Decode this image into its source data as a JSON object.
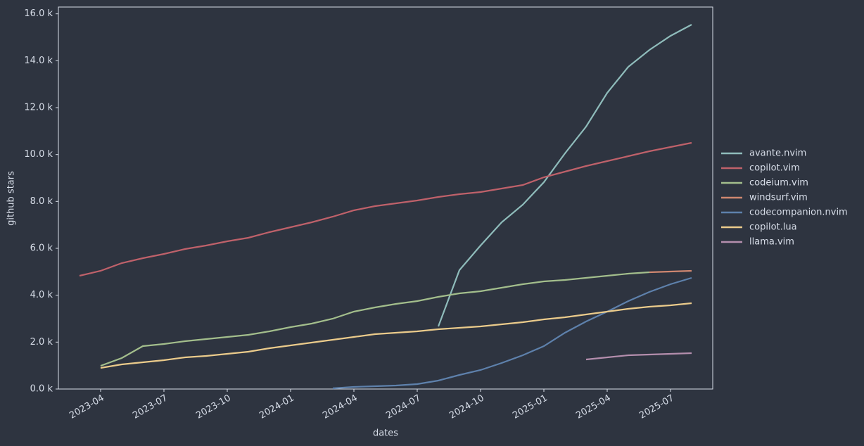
{
  "chart_data": {
    "type": "line",
    "xlabel": "dates",
    "ylabel": "github stars",
    "x": [
      "2023-03",
      "2023-04",
      "2023-05",
      "2023-06",
      "2023-07",
      "2023-08",
      "2023-09",
      "2023-10",
      "2023-11",
      "2023-12",
      "2024-01",
      "2024-02",
      "2024-03",
      "2024-04",
      "2024-05",
      "2024-06",
      "2024-07",
      "2024-08",
      "2024-09",
      "2024-10",
      "2024-11",
      "2024-12",
      "2025-01",
      "2025-02",
      "2025-03",
      "2025-04",
      "2025-05",
      "2025-06",
      "2025-07",
      "2025-08"
    ],
    "xlim": [
      "2023-02",
      "2025-09"
    ],
    "xticks": [
      "2023-04",
      "2023-07",
      "2023-10",
      "2024-01",
      "2024-04",
      "2024-07",
      "2024-10",
      "2025-01",
      "2025-04",
      "2025-07"
    ],
    "ylim": [
      0,
      16290
    ],
    "yticks": [
      {
        "value": 0,
        "label": "0.0 k"
      },
      {
        "value": 2000,
        "label": "2.0 k"
      },
      {
        "value": 4000,
        "label": "4.0 k"
      },
      {
        "value": 6000,
        "label": "6.0 k"
      },
      {
        "value": 8000,
        "label": "8.0 k"
      },
      {
        "value": 10000,
        "label": "10.0 k"
      },
      {
        "value": 12000,
        "label": "12.0 k"
      },
      {
        "value": 14000,
        "label": "14.0 k"
      },
      {
        "value": 16000,
        "label": "16.0 k"
      }
    ],
    "grid": false,
    "legend": "right",
    "series": [
      {
        "name": "avante.nvim",
        "color": "#8fbcbb",
        "values": [
          null,
          null,
          null,
          null,
          null,
          null,
          null,
          null,
          null,
          null,
          null,
          null,
          null,
          null,
          null,
          null,
          null,
          2670,
          5070,
          6120,
          7110,
          7860,
          8820,
          10050,
          11190,
          12630,
          13740,
          14460,
          15060,
          15540
        ]
      },
      {
        "name": "copilot.vim",
        "color": "#bf616a",
        "values": [
          4830,
          5040,
          5370,
          5580,
          5760,
          5970,
          6120,
          6300,
          6450,
          6690,
          6900,
          7110,
          7350,
          7620,
          7800,
          7920,
          8040,
          8190,
          8310,
          8400,
          8550,
          8700,
          9030,
          9270,
          9510,
          9720,
          9930,
          10140,
          10320,
          10500
        ]
      },
      {
        "name": "codeium.vim",
        "color": "#a3be8c",
        "values": [
          null,
          990,
          1320,
          1830,
          1920,
          2040,
          2130,
          2220,
          2310,
          2460,
          2640,
          2790,
          3000,
          3300,
          3480,
          3630,
          3750,
          3930,
          4080,
          4170,
          4320,
          4470,
          4590,
          4650,
          4740,
          4830,
          4920,
          4980,
          null,
          null
        ]
      },
      {
        "name": "windsurf.vim",
        "color": "#d08770",
        "values": [
          null,
          null,
          null,
          null,
          null,
          null,
          null,
          null,
          null,
          null,
          null,
          null,
          null,
          null,
          null,
          null,
          null,
          null,
          null,
          null,
          null,
          null,
          null,
          null,
          null,
          null,
          null,
          4980,
          5010,
          5040
        ]
      },
      {
        "name": "codecompanion.nvim",
        "color": "#5e81ac",
        "values": [
          null,
          null,
          null,
          null,
          null,
          null,
          null,
          null,
          null,
          null,
          null,
          null,
          30,
          90,
          120,
          150,
          210,
          360,
          600,
          810,
          1110,
          1440,
          1830,
          2400,
          2880,
          3300,
          3750,
          4140,
          4470,
          4740
        ]
      },
      {
        "name": "copilot.lua",
        "color": "#ebcb8b",
        "values": [
          null,
          900,
          1050,
          1140,
          1230,
          1350,
          1410,
          1500,
          1590,
          1740,
          1860,
          1980,
          2100,
          2220,
          2340,
          2400,
          2460,
          2550,
          2610,
          2670,
          2760,
          2850,
          2970,
          3060,
          3180,
          3300,
          3420,
          3510,
          3570,
          3660
        ]
      },
      {
        "name": "llama.vim",
        "color": "#b48ead",
        "values": [
          null,
          null,
          null,
          null,
          null,
          null,
          null,
          null,
          null,
          null,
          null,
          null,
          null,
          null,
          null,
          null,
          null,
          null,
          null,
          null,
          null,
          null,
          null,
          null,
          1260,
          1350,
          1440,
          1470,
          1500,
          1530
        ]
      }
    ]
  }
}
